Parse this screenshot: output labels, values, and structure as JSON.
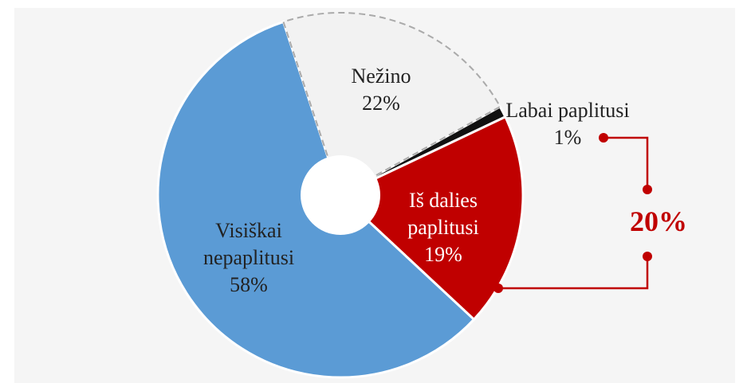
{
  "chart_data": {
    "type": "pie",
    "categories": [
      "Labai paplitusi",
      "Iš dalies paplitusi",
      "Visiškai nepaplitusi",
      "Nežino"
    ],
    "values": [
      1,
      19,
      58,
      22
    ],
    "value_labels": [
      "1%",
      "19%",
      "58%",
      "22%"
    ],
    "colors": [
      "#111111",
      "#c00000",
      "#5b9bd5",
      "#f2f2f2"
    ],
    "annotation": "20%"
  }
}
